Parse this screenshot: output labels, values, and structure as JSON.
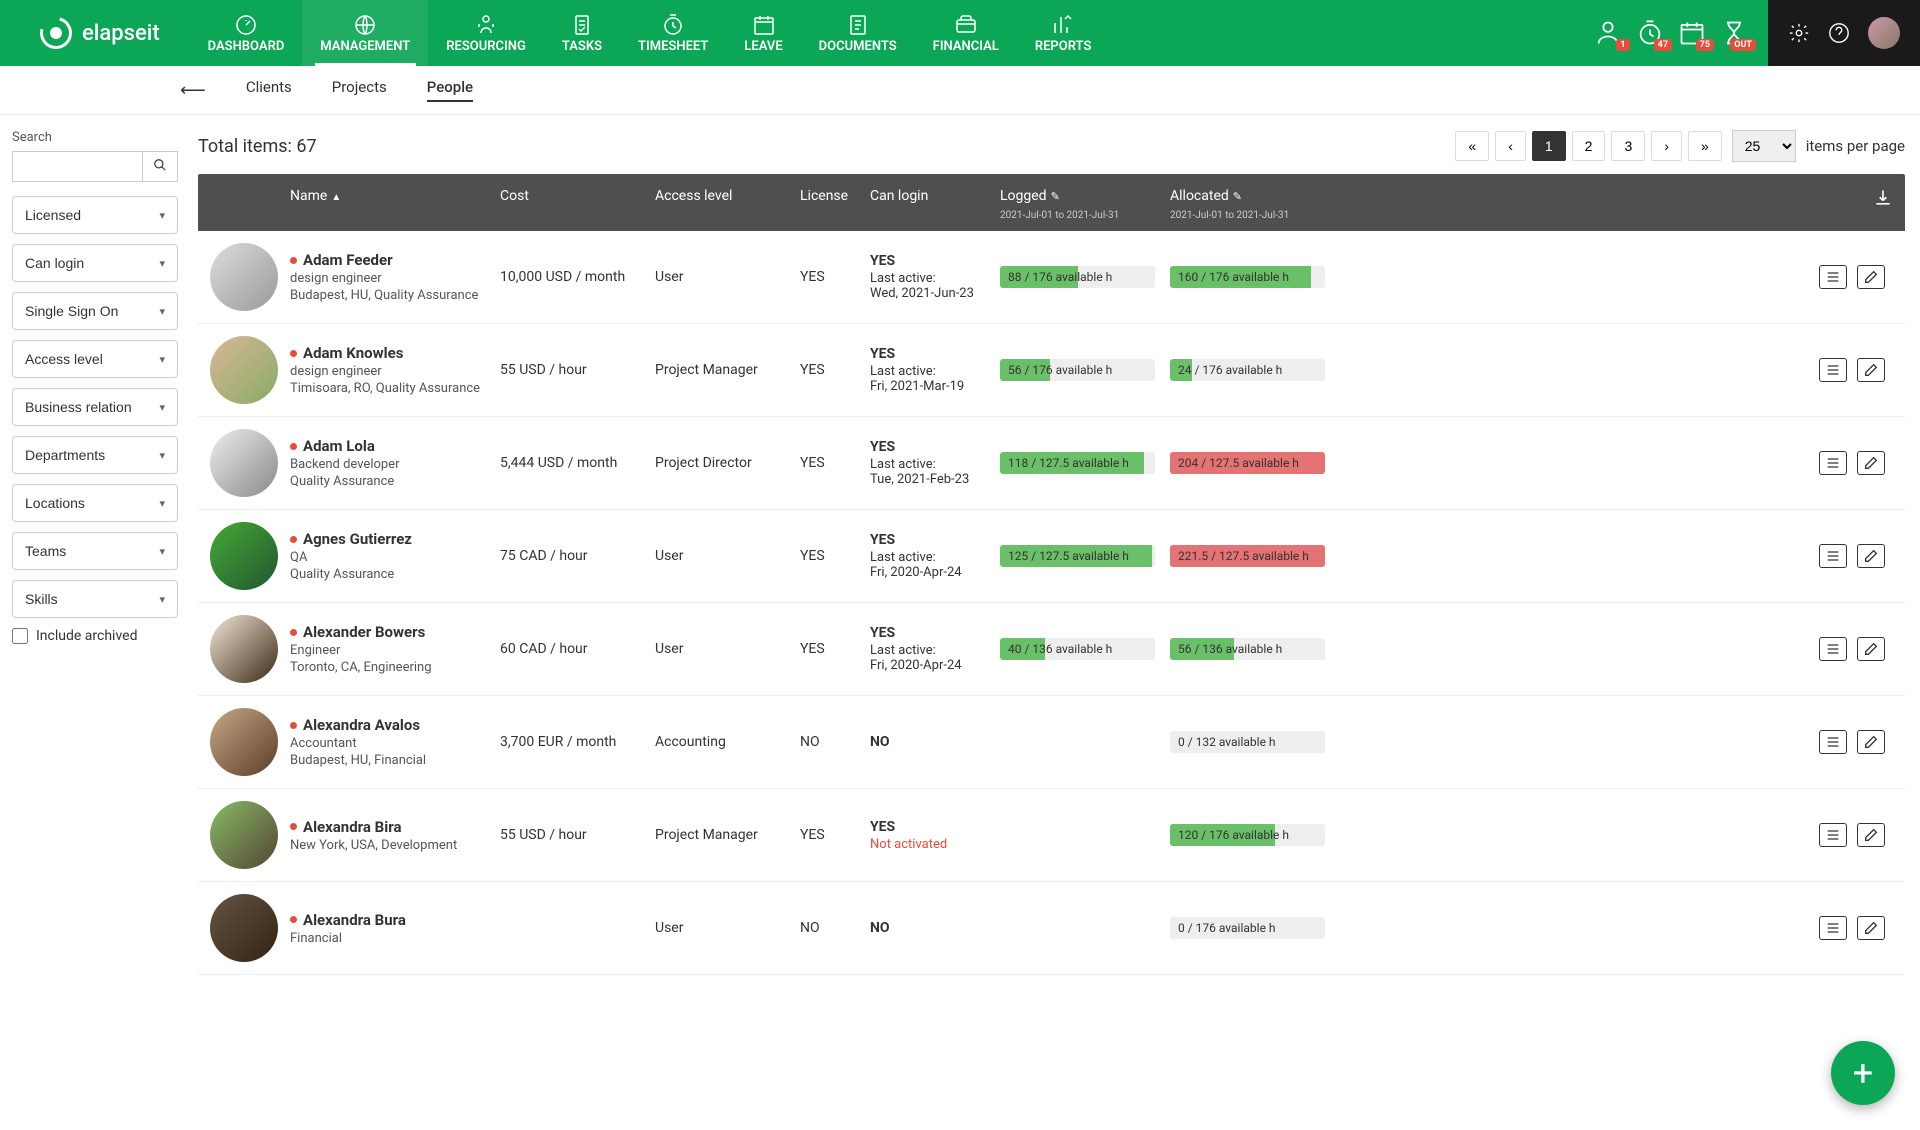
{
  "brand": "elapseit",
  "nav": [
    {
      "label": "DASHBOARD"
    },
    {
      "label": "MANAGEMENT",
      "active": true
    },
    {
      "label": "RESOURCING"
    },
    {
      "label": "TASKS"
    },
    {
      "label": "TIMESHEET"
    },
    {
      "label": "LEAVE"
    },
    {
      "label": "DOCUMENTS"
    },
    {
      "label": "FINANCIAL"
    },
    {
      "label": "REPORTS"
    }
  ],
  "badges": {
    "b1": "1",
    "b2": "47",
    "b3": "75",
    "b4": "OUT"
  },
  "subtabs": [
    {
      "label": "Clients"
    },
    {
      "label": "Projects"
    },
    {
      "label": "People",
      "active": true
    }
  ],
  "sidebar": {
    "search_label": "Search",
    "filters": [
      "Licensed",
      "Can login",
      "Single Sign On",
      "Access level",
      "Business relation",
      "Departments",
      "Locations",
      "Teams",
      "Skills"
    ],
    "include_archived": "Include archived"
  },
  "total_items_label": "Total items: 67",
  "pagination": {
    "pages": [
      "«",
      "‹",
      "1",
      "2",
      "3",
      "›",
      "»"
    ],
    "active": "1",
    "perpage": "25",
    "perpage_label": "items per page"
  },
  "columns": {
    "name": "Name",
    "cost": "Cost",
    "access": "Access level",
    "license": "License",
    "canlogin": "Can login",
    "logged": "Logged",
    "allocated": "Allocated",
    "daterange": "2021-Jul-01 to 2021-Jul-31"
  },
  "rows": [
    {
      "name": "Adam Feeder",
      "role": "design engineer",
      "loc": "Budapest, HU, Quality Assurance",
      "cost": "10,000 USD / month",
      "access": "User",
      "license": "YES",
      "login": "YES",
      "last_active": "Last active:",
      "last_date": "Wed, 2021-Jun-23",
      "logged": {
        "text": "88 / 176 available h",
        "pct": 50,
        "color": "green"
      },
      "allocated": {
        "text": "160 / 176 available h",
        "pct": 91,
        "color": "green"
      },
      "av": "av1"
    },
    {
      "name": "Adam Knowles",
      "role": "design engineer",
      "loc": "Timisoara, RO, Quality Assurance",
      "cost": "55 USD / hour",
      "access": "Project Manager",
      "license": "YES",
      "login": "YES",
      "last_active": "Last active:",
      "last_date": "Fri, 2021-Mar-19",
      "logged": {
        "text": "56 / 176 available h",
        "pct": 32,
        "color": "green"
      },
      "allocated": {
        "text": "24 / 176 available h",
        "pct": 14,
        "color": "green"
      },
      "av": "av2"
    },
    {
      "name": "Adam Lola",
      "role": "Backend developer",
      "loc": "Quality Assurance",
      "cost": "5,444 USD / month",
      "access": "Project Director",
      "license": "YES",
      "login": "YES",
      "last_active": "Last active:",
      "last_date": "Tue, 2021-Feb-23",
      "logged": {
        "text": "118 / 127.5 available h",
        "pct": 93,
        "color": "green"
      },
      "allocated": {
        "text": "204 / 127.5 available h",
        "pct": 100,
        "color": "red"
      },
      "av": "av3"
    },
    {
      "name": "Agnes Gutierrez",
      "role": "QA",
      "loc": "Quality Assurance",
      "cost": "75 CAD / hour",
      "access": "User",
      "license": "YES",
      "login": "YES",
      "last_active": "Last active:",
      "last_date": "Fri, 2020-Apr-24",
      "logged": {
        "text": "125 / 127.5 available h",
        "pct": 98,
        "color": "green"
      },
      "allocated": {
        "text": "221.5 / 127.5 available h",
        "pct": 100,
        "color": "red"
      },
      "av": "av4"
    },
    {
      "name": "Alexander Bowers",
      "role": "Engineer",
      "loc": "Toronto, CA, Engineering",
      "cost": "60 CAD / hour",
      "access": "User",
      "license": "YES",
      "login": "YES",
      "last_active": "Last active:",
      "last_date": "Fri, 2020-Apr-24",
      "logged": {
        "text": "40 / 136 available h",
        "pct": 29,
        "color": "green"
      },
      "allocated": {
        "text": "56 / 136 available h",
        "pct": 41,
        "color": "green"
      },
      "av": "av5"
    },
    {
      "name": "Alexandra Avalos",
      "role": "Accountant",
      "loc": "Budapest, HU, Financial",
      "cost": "3,700 EUR / month",
      "access": "Accounting",
      "license": "NO",
      "login": "NO",
      "logged": null,
      "allocated": {
        "text": "0 / 132 available h",
        "pct": 0,
        "color": "green"
      },
      "av": "av6"
    },
    {
      "name": "Alexandra Bira",
      "role": "New York, USA, Development",
      "loc": "",
      "cost": "55 USD / hour",
      "access": "Project Manager",
      "license": "YES",
      "login": "YES",
      "not_activated": "Not activated",
      "logged": null,
      "allocated": {
        "text": "120 / 176 available h",
        "pct": 68,
        "color": "green"
      },
      "av": "av7"
    },
    {
      "name": "Alexandra Bura",
      "role": "Financial",
      "loc": "",
      "cost": "",
      "access": "User",
      "license": "NO",
      "login": "NO",
      "logged": null,
      "allocated": {
        "text": "0 / 176 available h",
        "pct": 0,
        "color": "green"
      },
      "av": "av8"
    }
  ]
}
